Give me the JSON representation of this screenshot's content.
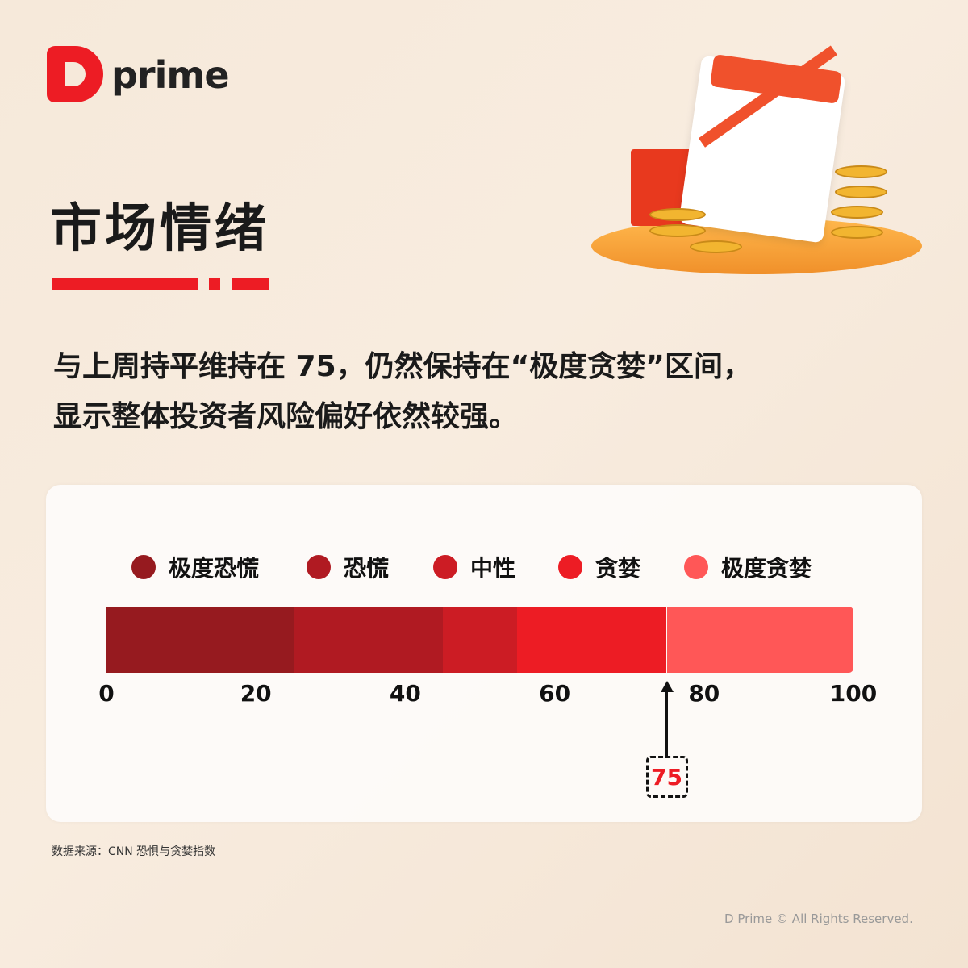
{
  "brand": {
    "logo_text": "prime"
  },
  "title": "市场情绪",
  "description": [
    "与上周持平维持在 75，仍然保持在“极度贪婪”区间，",
    "显示整体投资者风险偏好依然较强。"
  ],
  "chart_data": {
    "type": "bar",
    "subtype": "segmented-gauge",
    "xlim": [
      0,
      100
    ],
    "ticks": [
      "0",
      "20",
      "40",
      "60",
      "80",
      "100"
    ],
    "tick_values": [
      0,
      20,
      40,
      60,
      80,
      100
    ],
    "legend_position": "top",
    "segments": [
      {
        "name": "极度恐慌",
        "from": 0,
        "to": 25,
        "color": "#961a1f"
      },
      {
        "name": "恐慌",
        "from": 25,
        "to": 45,
        "color": "#b01a22"
      },
      {
        "name": "中性",
        "from": 45,
        "to": 55,
        "color": "#cc1c24"
      },
      {
        "name": "贪婪",
        "from": 55,
        "to": 75,
        "color": "#ed1c24"
      },
      {
        "name": "极度贪婪",
        "from": 75,
        "to": 100,
        "color": "#ff5757"
      }
    ],
    "indicator": {
      "value": 75,
      "label": "75"
    }
  },
  "source": "数据来源：CNN 恐惧与贪婪指数",
  "copyright": "D Prime © All Rights Reserved."
}
